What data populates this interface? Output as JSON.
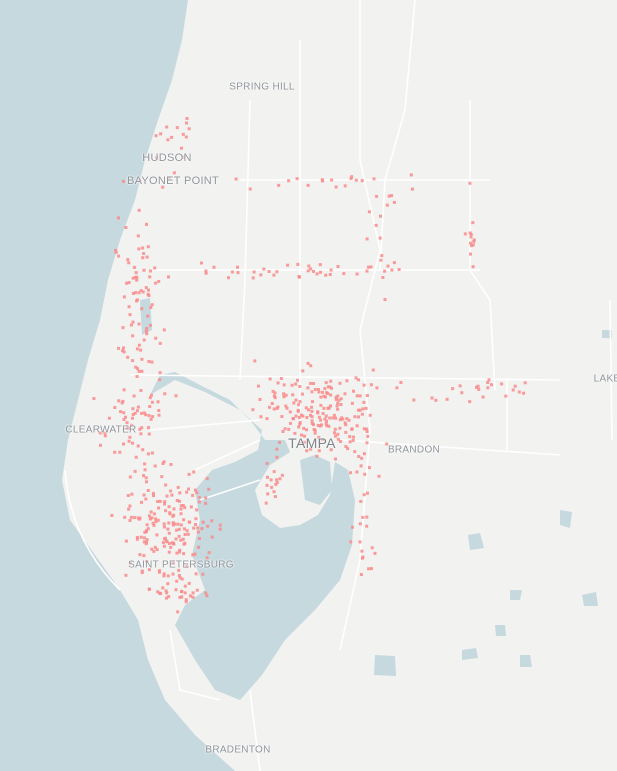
{
  "map": {
    "colors": {
      "land": "#f2f2f0",
      "water": "#c6d9df",
      "road": "#ffffff",
      "point": "#f98b8b",
      "label": "#8f959c"
    },
    "labels": [
      {
        "id": "spring-hill",
        "text": "SPRING HILL"
      },
      {
        "id": "hudson",
        "text": "HUDSON"
      },
      {
        "id": "bayonet-point",
        "text": "BAYONET POINT"
      },
      {
        "id": "clearwater",
        "text": "CLEARWATER"
      },
      {
        "id": "tampa",
        "text": "TAMPA"
      },
      {
        "id": "brandon",
        "text": "BRANDON"
      },
      {
        "id": "saint-petersburg",
        "text": "SAINT PETERSBURG"
      },
      {
        "id": "bradenton",
        "text": "BRADENTON"
      },
      {
        "id": "lakeland",
        "text": "LAKE"
      }
    ]
  }
}
